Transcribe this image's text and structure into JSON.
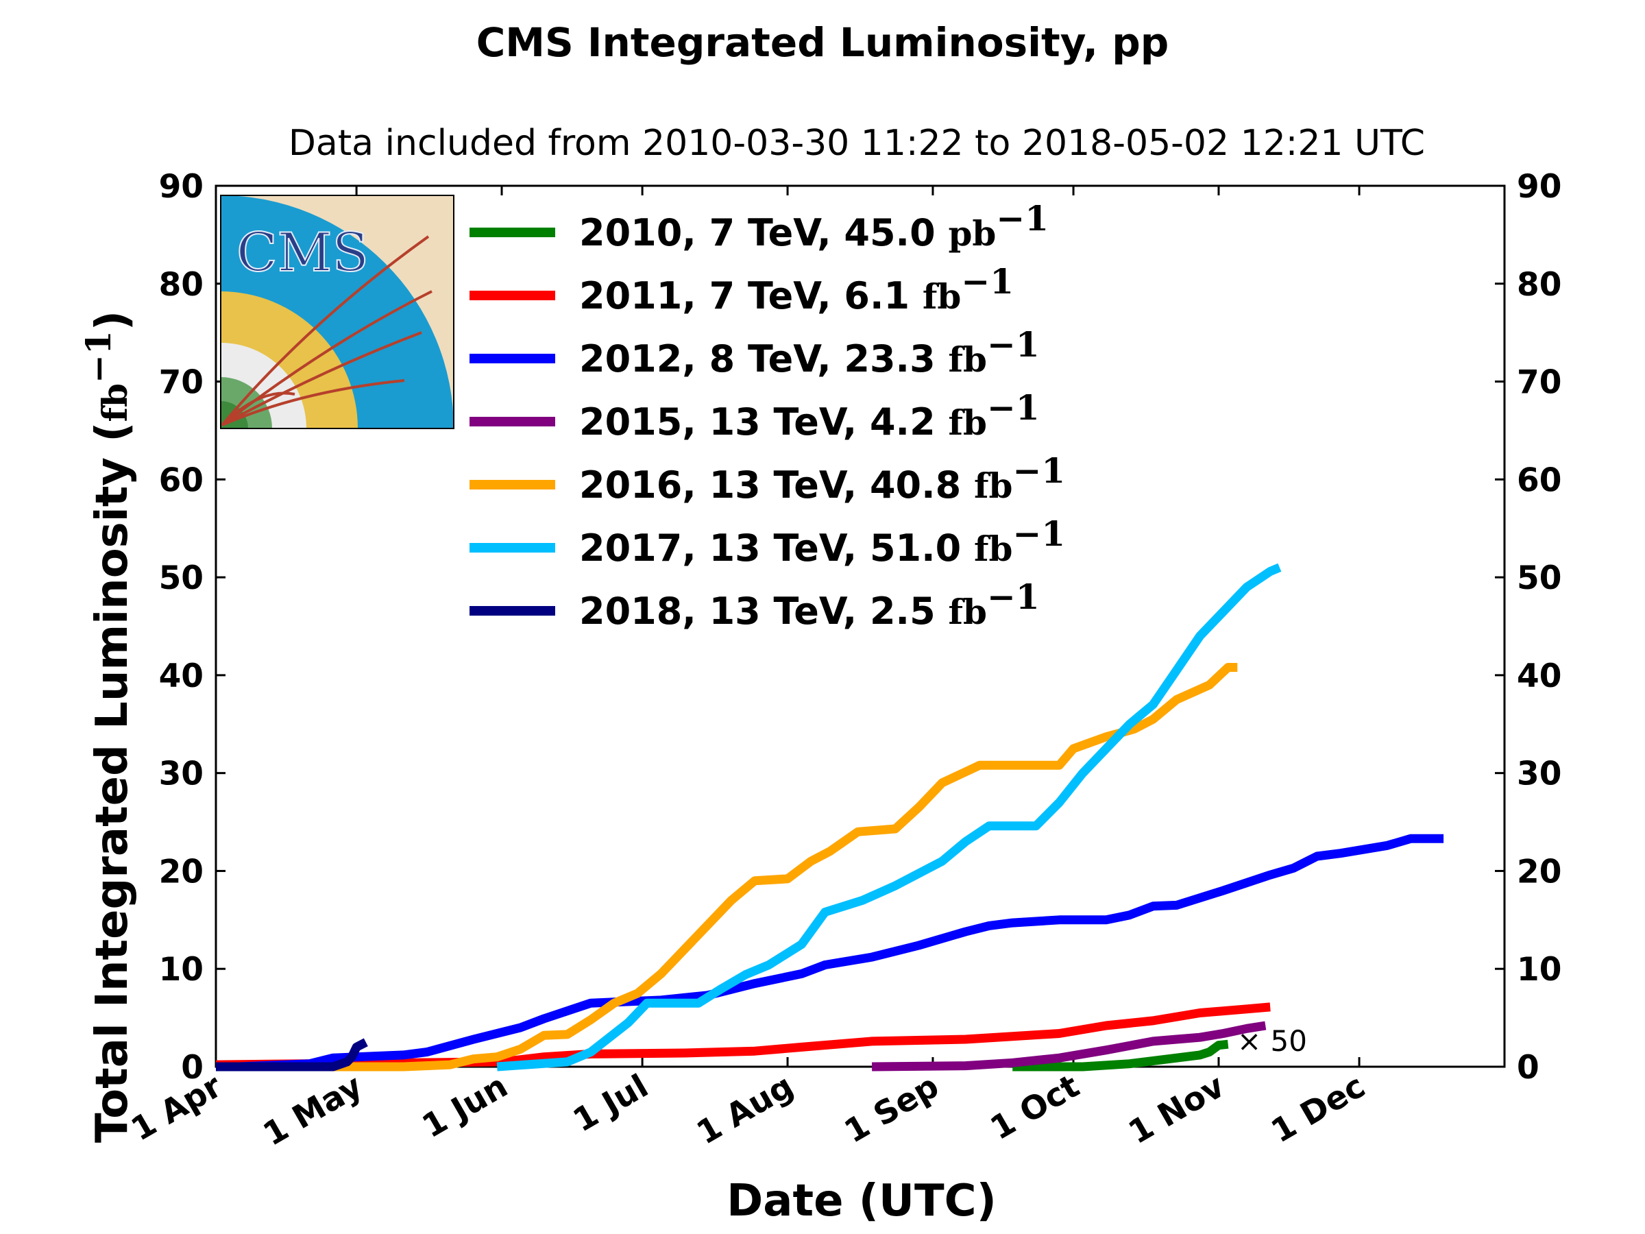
{
  "chart_data": {
    "type": "line",
    "title": "CMS Integrated Luminosity, pp",
    "subtitle": "Data included from 2010-03-30 11:22 to 2018-05-02 12:21 UTC",
    "xlabel": "Date (UTC)",
    "ylabel": "Total Integrated Luminosity (",
    "ylabel_unit": "fb",
    "ylabel_exp": "−1",
    "ylabel_close": ")",
    "x_ticks": [
      "1 Apr",
      "1 May",
      "1 Jun",
      "1 Jul",
      "1 Aug",
      "1 Sep",
      "1 Oct",
      "1 Nov",
      "1 Dec"
    ],
    "x_tick_days": [
      0,
      30,
      61,
      91,
      122,
      153,
      183,
      214,
      244
    ],
    "xlim": [
      0,
      275
    ],
    "y_ticks": [
      "0",
      "10",
      "20",
      "30",
      "40",
      "50",
      "60",
      "70",
      "80",
      "90"
    ],
    "ylim": [
      0,
      90
    ],
    "grid": false,
    "legend_position": "upper-left",
    "logo": "CMS",
    "annotation": "× 50",
    "series": [
      {
        "name": "2010, 7 TeV, 45.0",
        "unit": "pb",
        "exp": "−1",
        "color": "#008000",
        "points": [
          [
            170,
            0
          ],
          [
            185,
            0
          ],
          [
            195,
            0.3
          ],
          [
            200,
            0.6
          ],
          [
            205,
            0.9
          ],
          [
            210,
            1.2
          ],
          [
            212,
            1.5
          ],
          [
            214,
            2.2
          ],
          [
            216,
            2.3
          ]
        ]
      },
      {
        "name": "2011, 7 TeV, 6.1",
        "unit": "fb",
        "exp": "−1",
        "color": "#ff0000",
        "points": [
          [
            0,
            0.2
          ],
          [
            61,
            0.5
          ],
          [
            70,
            1.0
          ],
          [
            80,
            1.3
          ],
          [
            100,
            1.4
          ],
          [
            115,
            1.6
          ],
          [
            125,
            2.0
          ],
          [
            140,
            2.6
          ],
          [
            160,
            2.8
          ],
          [
            180,
            3.4
          ],
          [
            190,
            4.2
          ],
          [
            200,
            4.7
          ],
          [
            210,
            5.5
          ],
          [
            220,
            5.9
          ],
          [
            225,
            6.1
          ]
        ]
      },
      {
        "name": "2012, 8 TeV, 23.3",
        "unit": "fb",
        "exp": "−1",
        "color": "#0000ff",
        "points": [
          [
            5,
            0
          ],
          [
            20,
            0.3
          ],
          [
            25,
            0.9
          ],
          [
            40,
            1.2
          ],
          [
            45,
            1.5
          ],
          [
            55,
            2.8
          ],
          [
            65,
            4.0
          ],
          [
            70,
            4.9
          ],
          [
            80,
            6.5
          ],
          [
            95,
            6.8
          ],
          [
            105,
            7.3
          ],
          [
            115,
            8.5
          ],
          [
            125,
            9.5
          ],
          [
            130,
            10.4
          ],
          [
            140,
            11.2
          ],
          [
            150,
            12.4
          ],
          [
            160,
            13.8
          ],
          [
            165,
            14.4
          ],
          [
            170,
            14.7
          ],
          [
            180,
            15.0
          ],
          [
            190,
            15.0
          ],
          [
            195,
            15.5
          ],
          [
            200,
            16.4
          ],
          [
            205,
            16.5
          ],
          [
            215,
            18.0
          ],
          [
            225,
            19.6
          ],
          [
            230,
            20.3
          ],
          [
            235,
            21.5
          ],
          [
            240,
            21.8
          ],
          [
            250,
            22.6
          ],
          [
            255,
            23.3
          ],
          [
            262,
            23.3
          ]
        ]
      },
      {
        "name": "2015, 13 TeV, 4.2",
        "unit": "fb",
        "exp": "−1",
        "color": "#800080",
        "points": [
          [
            140,
            0
          ],
          [
            160,
            0.1
          ],
          [
            170,
            0.4
          ],
          [
            180,
            0.9
          ],
          [
            190,
            1.7
          ],
          [
            200,
            2.6
          ],
          [
            205,
            2.8
          ],
          [
            210,
            3.0
          ],
          [
            215,
            3.4
          ],
          [
            220,
            3.9
          ],
          [
            224,
            4.2
          ]
        ]
      },
      {
        "name": "2016, 13 TeV, 40.8",
        "unit": "fb",
        "exp": "−1",
        "color": "#ffa500",
        "points": [
          [
            0,
            0
          ],
          [
            40,
            0
          ],
          [
            50,
            0.2
          ],
          [
            55,
            0.8
          ],
          [
            60,
            1.0
          ],
          [
            65,
            1.8
          ],
          [
            70,
            3.2
          ],
          [
            75,
            3.3
          ],
          [
            80,
            4.8
          ],
          [
            85,
            6.5
          ],
          [
            90,
            7.5
          ],
          [
            95,
            9.5
          ],
          [
            100,
            12.0
          ],
          [
            105,
            14.5
          ],
          [
            110,
            17.0
          ],
          [
            115,
            19.0
          ],
          [
            122,
            19.2
          ],
          [
            127,
            21.0
          ],
          [
            131,
            22.0
          ],
          [
            137,
            24.0
          ],
          [
            145,
            24.3
          ],
          [
            150,
            26.5
          ],
          [
            155,
            29.0
          ],
          [
            163,
            30.8
          ],
          [
            170,
            30.8
          ],
          [
            180,
            30.8
          ],
          [
            183,
            32.5
          ],
          [
            190,
            33.7
          ],
          [
            196,
            34.5
          ],
          [
            200,
            35.5
          ],
          [
            205,
            37.5
          ],
          [
            212,
            39.0
          ],
          [
            216,
            40.8
          ],
          [
            218,
            40.8
          ]
        ]
      },
      {
        "name": "2017, 13 TeV, 51.0",
        "unit": "fb",
        "exp": "−1",
        "color": "#00bfff",
        "points": [
          [
            60,
            0
          ],
          [
            75,
            0.5
          ],
          [
            80,
            1.5
          ],
          [
            88,
            4.5
          ],
          [
            92,
            6.5
          ],
          [
            103,
            6.5
          ],
          [
            108,
            8.0
          ],
          [
            113,
            9.4
          ],
          [
            118,
            10.4
          ],
          [
            125,
            12.5
          ],
          [
            130,
            15.8
          ],
          [
            138,
            17.0
          ],
          [
            145,
            18.5
          ],
          [
            155,
            21.0
          ],
          [
            160,
            23.0
          ],
          [
            165,
            24.6
          ],
          [
            175,
            24.6
          ],
          [
            180,
            27.0
          ],
          [
            185,
            30.0
          ],
          [
            190,
            32.5
          ],
          [
            195,
            35.0
          ],
          [
            200,
            37.0
          ],
          [
            205,
            40.5
          ],
          [
            210,
            44.0
          ],
          [
            215,
            46.5
          ],
          [
            220,
            49.0
          ],
          [
            225,
            50.6
          ],
          [
            227,
            51.0
          ]
        ]
      },
      {
        "name": "2018, 13 TeV, 2.5",
        "unit": "fb",
        "exp": "−1",
        "color": "#000080",
        "points": [
          [
            0,
            0
          ],
          [
            25,
            0
          ],
          [
            28,
            0.5
          ],
          [
            29,
            1.0
          ],
          [
            30,
            2.0
          ],
          [
            32,
            2.5
          ]
        ]
      }
    ]
  }
}
